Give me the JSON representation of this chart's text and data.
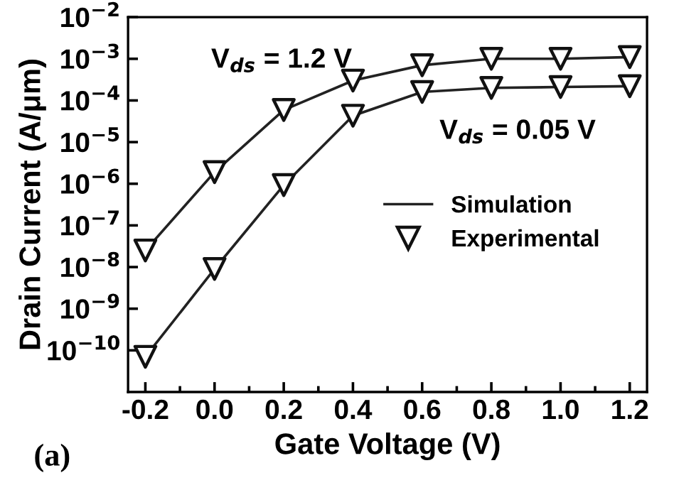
{
  "chart_data": {
    "type": "line",
    "xlabel": "Gate Voltage (V)",
    "ylabel": "Drain Current (A/μm)",
    "log": "y",
    "x": [
      -0.2,
      0.0,
      0.2,
      0.4,
      0.6,
      0.8,
      1.0,
      1.2
    ],
    "xlim": [
      -0.25,
      1.25
    ],
    "xticks": [
      {
        "value": -0.2,
        "label": "-0.2"
      },
      {
        "value": 0.0,
        "label": "0.0"
      },
      {
        "value": 0.2,
        "label": "0.2"
      },
      {
        "value": 0.4,
        "label": "0.4"
      },
      {
        "value": 0.6,
        "label": "0.6"
      },
      {
        "value": 0.8,
        "label": "0.8"
      },
      {
        "value": 1.0,
        "label": "1.0"
      },
      {
        "value": 1.2,
        "label": "1.2"
      }
    ],
    "ylim": [
      1e-11,
      0.01
    ],
    "yticks": [
      {
        "value": 0.01,
        "label": "10$^{−2}$"
      },
      {
        "value": 0.001,
        "label": "10$^{−3}$"
      },
      {
        "value": 0.0001,
        "label": "10$^{−4}$"
      },
      {
        "value": 1e-05,
        "label": "10$^{−5}$"
      },
      {
        "value": 1e-06,
        "label": "10$^{−6}$"
      },
      {
        "value": 1e-07,
        "label": "10$^{−7}$"
      },
      {
        "value": 1e-08,
        "label": "10$^{−8}$"
      },
      {
        "value": 1e-09,
        "label": "10$^{−9}$"
      },
      {
        "value": 1e-10,
        "label": "10$^{−10}$"
      }
    ],
    "legend": "right",
    "grid": false,
    "series": [
      {
        "name": "Simulation",
        "color": "#222222",
        "marker": "none",
        "line_style": "solid",
        "values": [
          2.5e-08,
          1.9e-06,
          5.9e-05,
          0.0003,
          0.0007,
          0.001,
          0.001,
          0.0011
        ]
      },
      {
        "color": "#222222",
        "marker": "none",
        "line_style": "solid",
        "values": [
          7e-11,
          9e-09,
          9.3e-07,
          4.3e-05,
          0.00016,
          0.0002,
          0.00021,
          0.00022
        ]
      },
      {
        "name": "Experimental",
        "type": "scatter",
        "color": "#111111",
        "marker": "triangle",
        "values": [
          2.5e-08,
          1.9e-06,
          5.9e-05,
          0.0003,
          0.0007,
          0.001,
          0.001,
          0.0011
        ]
      },
      {
        "type": "scatter",
        "color": "#111111",
        "marker": "triangle",
        "values": [
          7e-11,
          9e-09,
          9.3e-07,
          4.3e-05,
          0.00016,
          0.0002,
          0.00021,
          0.00022
        ]
      }
    ],
    "annotations": [
      "V$_{ds}$ = 1.2 V",
      "V$_{ds}$ = 0.05 V",
      "(a)"
    ]
  }
}
